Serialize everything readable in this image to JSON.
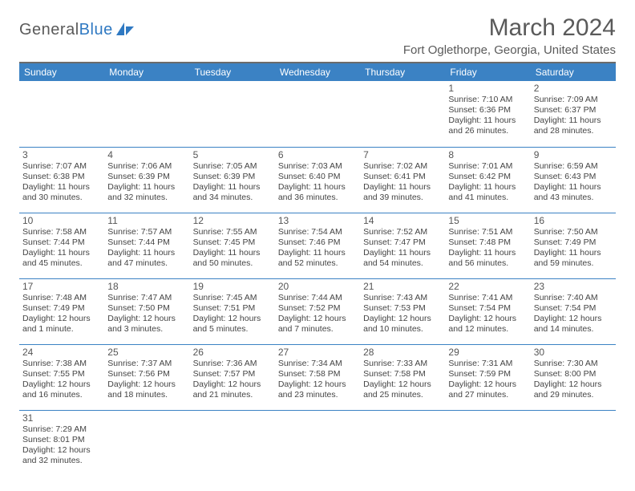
{
  "brand": {
    "name_part1": "General",
    "name_part2": "Blue"
  },
  "title": "March 2024",
  "location": "Fort Oglethorpe, Georgia, United States",
  "colors": {
    "header_bg": "#3b82c4",
    "header_fg": "#ffffff",
    "rule": "#6b6b6b",
    "cell_border": "#3b82c4",
    "text": "#444444",
    "brand_gray": "#5a5a5a",
    "brand_blue": "#2f79c2"
  },
  "typography": {
    "title_fontsize_pt": 22,
    "location_fontsize_pt": 11,
    "dayheader_fontsize_pt": 9,
    "body_fontsize_pt": 8
  },
  "day_headers": [
    "Sunday",
    "Monday",
    "Tuesday",
    "Wednesday",
    "Thursday",
    "Friday",
    "Saturday"
  ],
  "weeks": [
    [
      null,
      null,
      null,
      null,
      null,
      {
        "n": "1",
        "sunrise": "Sunrise: 7:10 AM",
        "sunset": "Sunset: 6:36 PM",
        "daylight": "Daylight: 11 hours and 26 minutes."
      },
      {
        "n": "2",
        "sunrise": "Sunrise: 7:09 AM",
        "sunset": "Sunset: 6:37 PM",
        "daylight": "Daylight: 11 hours and 28 minutes."
      }
    ],
    [
      {
        "n": "3",
        "sunrise": "Sunrise: 7:07 AM",
        "sunset": "Sunset: 6:38 PM",
        "daylight": "Daylight: 11 hours and 30 minutes."
      },
      {
        "n": "4",
        "sunrise": "Sunrise: 7:06 AM",
        "sunset": "Sunset: 6:39 PM",
        "daylight": "Daylight: 11 hours and 32 minutes."
      },
      {
        "n": "5",
        "sunrise": "Sunrise: 7:05 AM",
        "sunset": "Sunset: 6:39 PM",
        "daylight": "Daylight: 11 hours and 34 minutes."
      },
      {
        "n": "6",
        "sunrise": "Sunrise: 7:03 AM",
        "sunset": "Sunset: 6:40 PM",
        "daylight": "Daylight: 11 hours and 36 minutes."
      },
      {
        "n": "7",
        "sunrise": "Sunrise: 7:02 AM",
        "sunset": "Sunset: 6:41 PM",
        "daylight": "Daylight: 11 hours and 39 minutes."
      },
      {
        "n": "8",
        "sunrise": "Sunrise: 7:01 AM",
        "sunset": "Sunset: 6:42 PM",
        "daylight": "Daylight: 11 hours and 41 minutes."
      },
      {
        "n": "9",
        "sunrise": "Sunrise: 6:59 AM",
        "sunset": "Sunset: 6:43 PM",
        "daylight": "Daylight: 11 hours and 43 minutes."
      }
    ],
    [
      {
        "n": "10",
        "sunrise": "Sunrise: 7:58 AM",
        "sunset": "Sunset: 7:44 PM",
        "daylight": "Daylight: 11 hours and 45 minutes."
      },
      {
        "n": "11",
        "sunrise": "Sunrise: 7:57 AM",
        "sunset": "Sunset: 7:44 PM",
        "daylight": "Daylight: 11 hours and 47 minutes."
      },
      {
        "n": "12",
        "sunrise": "Sunrise: 7:55 AM",
        "sunset": "Sunset: 7:45 PM",
        "daylight": "Daylight: 11 hours and 50 minutes."
      },
      {
        "n": "13",
        "sunrise": "Sunrise: 7:54 AM",
        "sunset": "Sunset: 7:46 PM",
        "daylight": "Daylight: 11 hours and 52 minutes."
      },
      {
        "n": "14",
        "sunrise": "Sunrise: 7:52 AM",
        "sunset": "Sunset: 7:47 PM",
        "daylight": "Daylight: 11 hours and 54 minutes."
      },
      {
        "n": "15",
        "sunrise": "Sunrise: 7:51 AM",
        "sunset": "Sunset: 7:48 PM",
        "daylight": "Daylight: 11 hours and 56 minutes."
      },
      {
        "n": "16",
        "sunrise": "Sunrise: 7:50 AM",
        "sunset": "Sunset: 7:49 PM",
        "daylight": "Daylight: 11 hours and 59 minutes."
      }
    ],
    [
      {
        "n": "17",
        "sunrise": "Sunrise: 7:48 AM",
        "sunset": "Sunset: 7:49 PM",
        "daylight": "Daylight: 12 hours and 1 minute."
      },
      {
        "n": "18",
        "sunrise": "Sunrise: 7:47 AM",
        "sunset": "Sunset: 7:50 PM",
        "daylight": "Daylight: 12 hours and 3 minutes."
      },
      {
        "n": "19",
        "sunrise": "Sunrise: 7:45 AM",
        "sunset": "Sunset: 7:51 PM",
        "daylight": "Daylight: 12 hours and 5 minutes."
      },
      {
        "n": "20",
        "sunrise": "Sunrise: 7:44 AM",
        "sunset": "Sunset: 7:52 PM",
        "daylight": "Daylight: 12 hours and 7 minutes."
      },
      {
        "n": "21",
        "sunrise": "Sunrise: 7:43 AM",
        "sunset": "Sunset: 7:53 PM",
        "daylight": "Daylight: 12 hours and 10 minutes."
      },
      {
        "n": "22",
        "sunrise": "Sunrise: 7:41 AM",
        "sunset": "Sunset: 7:54 PM",
        "daylight": "Daylight: 12 hours and 12 minutes."
      },
      {
        "n": "23",
        "sunrise": "Sunrise: 7:40 AM",
        "sunset": "Sunset: 7:54 PM",
        "daylight": "Daylight: 12 hours and 14 minutes."
      }
    ],
    [
      {
        "n": "24",
        "sunrise": "Sunrise: 7:38 AM",
        "sunset": "Sunset: 7:55 PM",
        "daylight": "Daylight: 12 hours and 16 minutes."
      },
      {
        "n": "25",
        "sunrise": "Sunrise: 7:37 AM",
        "sunset": "Sunset: 7:56 PM",
        "daylight": "Daylight: 12 hours and 18 minutes."
      },
      {
        "n": "26",
        "sunrise": "Sunrise: 7:36 AM",
        "sunset": "Sunset: 7:57 PM",
        "daylight": "Daylight: 12 hours and 21 minutes."
      },
      {
        "n": "27",
        "sunrise": "Sunrise: 7:34 AM",
        "sunset": "Sunset: 7:58 PM",
        "daylight": "Daylight: 12 hours and 23 minutes."
      },
      {
        "n": "28",
        "sunrise": "Sunrise: 7:33 AM",
        "sunset": "Sunset: 7:58 PM",
        "daylight": "Daylight: 12 hours and 25 minutes."
      },
      {
        "n": "29",
        "sunrise": "Sunrise: 7:31 AM",
        "sunset": "Sunset: 7:59 PM",
        "daylight": "Daylight: 12 hours and 27 minutes."
      },
      {
        "n": "30",
        "sunrise": "Sunrise: 7:30 AM",
        "sunset": "Sunset: 8:00 PM",
        "daylight": "Daylight: 12 hours and 29 minutes."
      }
    ],
    [
      {
        "n": "31",
        "sunrise": "Sunrise: 7:29 AM",
        "sunset": "Sunset: 8:01 PM",
        "daylight": "Daylight: 12 hours and 32 minutes."
      },
      null,
      null,
      null,
      null,
      null,
      null
    ]
  ]
}
